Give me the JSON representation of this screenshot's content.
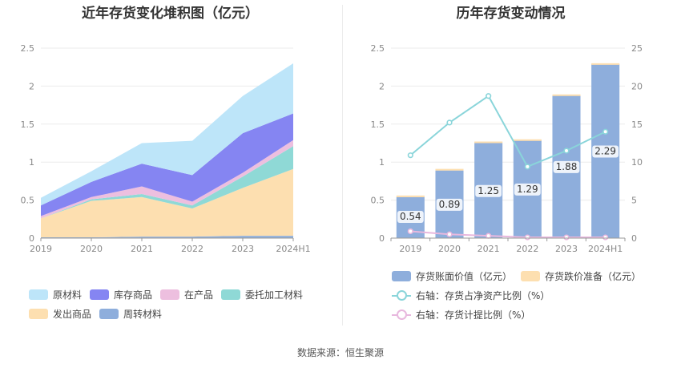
{
  "left_title": "近年存货变化堆积图（亿元）",
  "right_title": "历年存货变动情况",
  "source": "数据来源：恒生聚源",
  "chart_data": [
    {
      "type": "area",
      "stacked": true,
      "title": "近年存货变化堆积图（亿元）",
      "x": [
        "2019",
        "2020",
        "2021",
        "2022",
        "2023",
        "2024H1"
      ],
      "ylim": [
        0,
        2.5
      ],
      "yticks": [
        "0",
        "0.5",
        "1",
        "1.5",
        "2",
        "2.5"
      ],
      "grid": true,
      "legend_position": "bottom",
      "series": [
        {
          "name": "周转材料",
          "color": "#8eaedc",
          "values": [
            0.01,
            0.01,
            0.02,
            0.02,
            0.03,
            0.03
          ]
        },
        {
          "name": "发出商品",
          "color": "#fddfb0",
          "values": [
            0.25,
            0.48,
            0.52,
            0.37,
            0.63,
            0.88
          ]
        },
        {
          "name": "委托加工材料",
          "color": "#8fd9d6",
          "values": [
            0.0,
            0.02,
            0.04,
            0.04,
            0.15,
            0.3
          ]
        },
        {
          "name": "在产品",
          "color": "#edbfdf",
          "values": [
            0.03,
            0.03,
            0.1,
            0.05,
            0.05,
            0.08
          ]
        },
        {
          "name": "库存商品",
          "color": "#8585f2",
          "values": [
            0.14,
            0.2,
            0.3,
            0.35,
            0.52,
            0.35
          ]
        },
        {
          "name": "原材料",
          "color": "#bde5f9",
          "values": [
            0.1,
            0.14,
            0.27,
            0.45,
            0.49,
            0.66
          ]
        }
      ],
      "legend_order": [
        "原材料",
        "库存商品",
        "在产品",
        "委托加工材料",
        "发出商品",
        "周转材料"
      ]
    },
    {
      "type": "bar",
      "title": "历年存货变动情况",
      "categories": [
        "2019",
        "2020",
        "2021",
        "2022",
        "2023",
        "2024H1"
      ],
      "ylim": [
        0,
        2.5
      ],
      "yticks": [
        "0",
        "0.5",
        "1",
        "1.5",
        "2",
        "2.5"
      ],
      "y2lim": [
        0,
        25
      ],
      "y2ticks": [
        "0",
        "5",
        "10",
        "15",
        "20",
        "25"
      ],
      "grid": true,
      "legend_position": "bottom",
      "series": [
        {
          "name": "存货账面价值（亿元）",
          "type": "bar",
          "axis": "left",
          "color": "#8eaedc",
          "values": [
            0.54,
            0.89,
            1.25,
            1.29,
            1.88,
            2.29
          ],
          "labels": [
            "0.54",
            "0.89",
            "1.25",
            "1.29",
            "1.88",
            "2.29"
          ]
        },
        {
          "name": "存货跌价准备（亿元）",
          "type": "bar",
          "axis": "left",
          "color": "#fddfb0",
          "values": [
            0.01,
            0.01,
            0.01,
            0.0,
            0.0,
            0.0
          ]
        },
        {
          "name": "右轴：存货占净资产比例（%）",
          "type": "line",
          "axis": "right",
          "color": "#8ad5da",
          "values": [
            10.9,
            15.2,
            18.7,
            9.4,
            11.5,
            14.0
          ]
        },
        {
          "name": "右轴：存货计提比例（%）",
          "type": "line",
          "axis": "right",
          "color": "#e8b8de",
          "values": [
            0.9,
            0.5,
            0.3,
            0.1,
            0.1,
            0.1
          ]
        }
      ]
    }
  ]
}
